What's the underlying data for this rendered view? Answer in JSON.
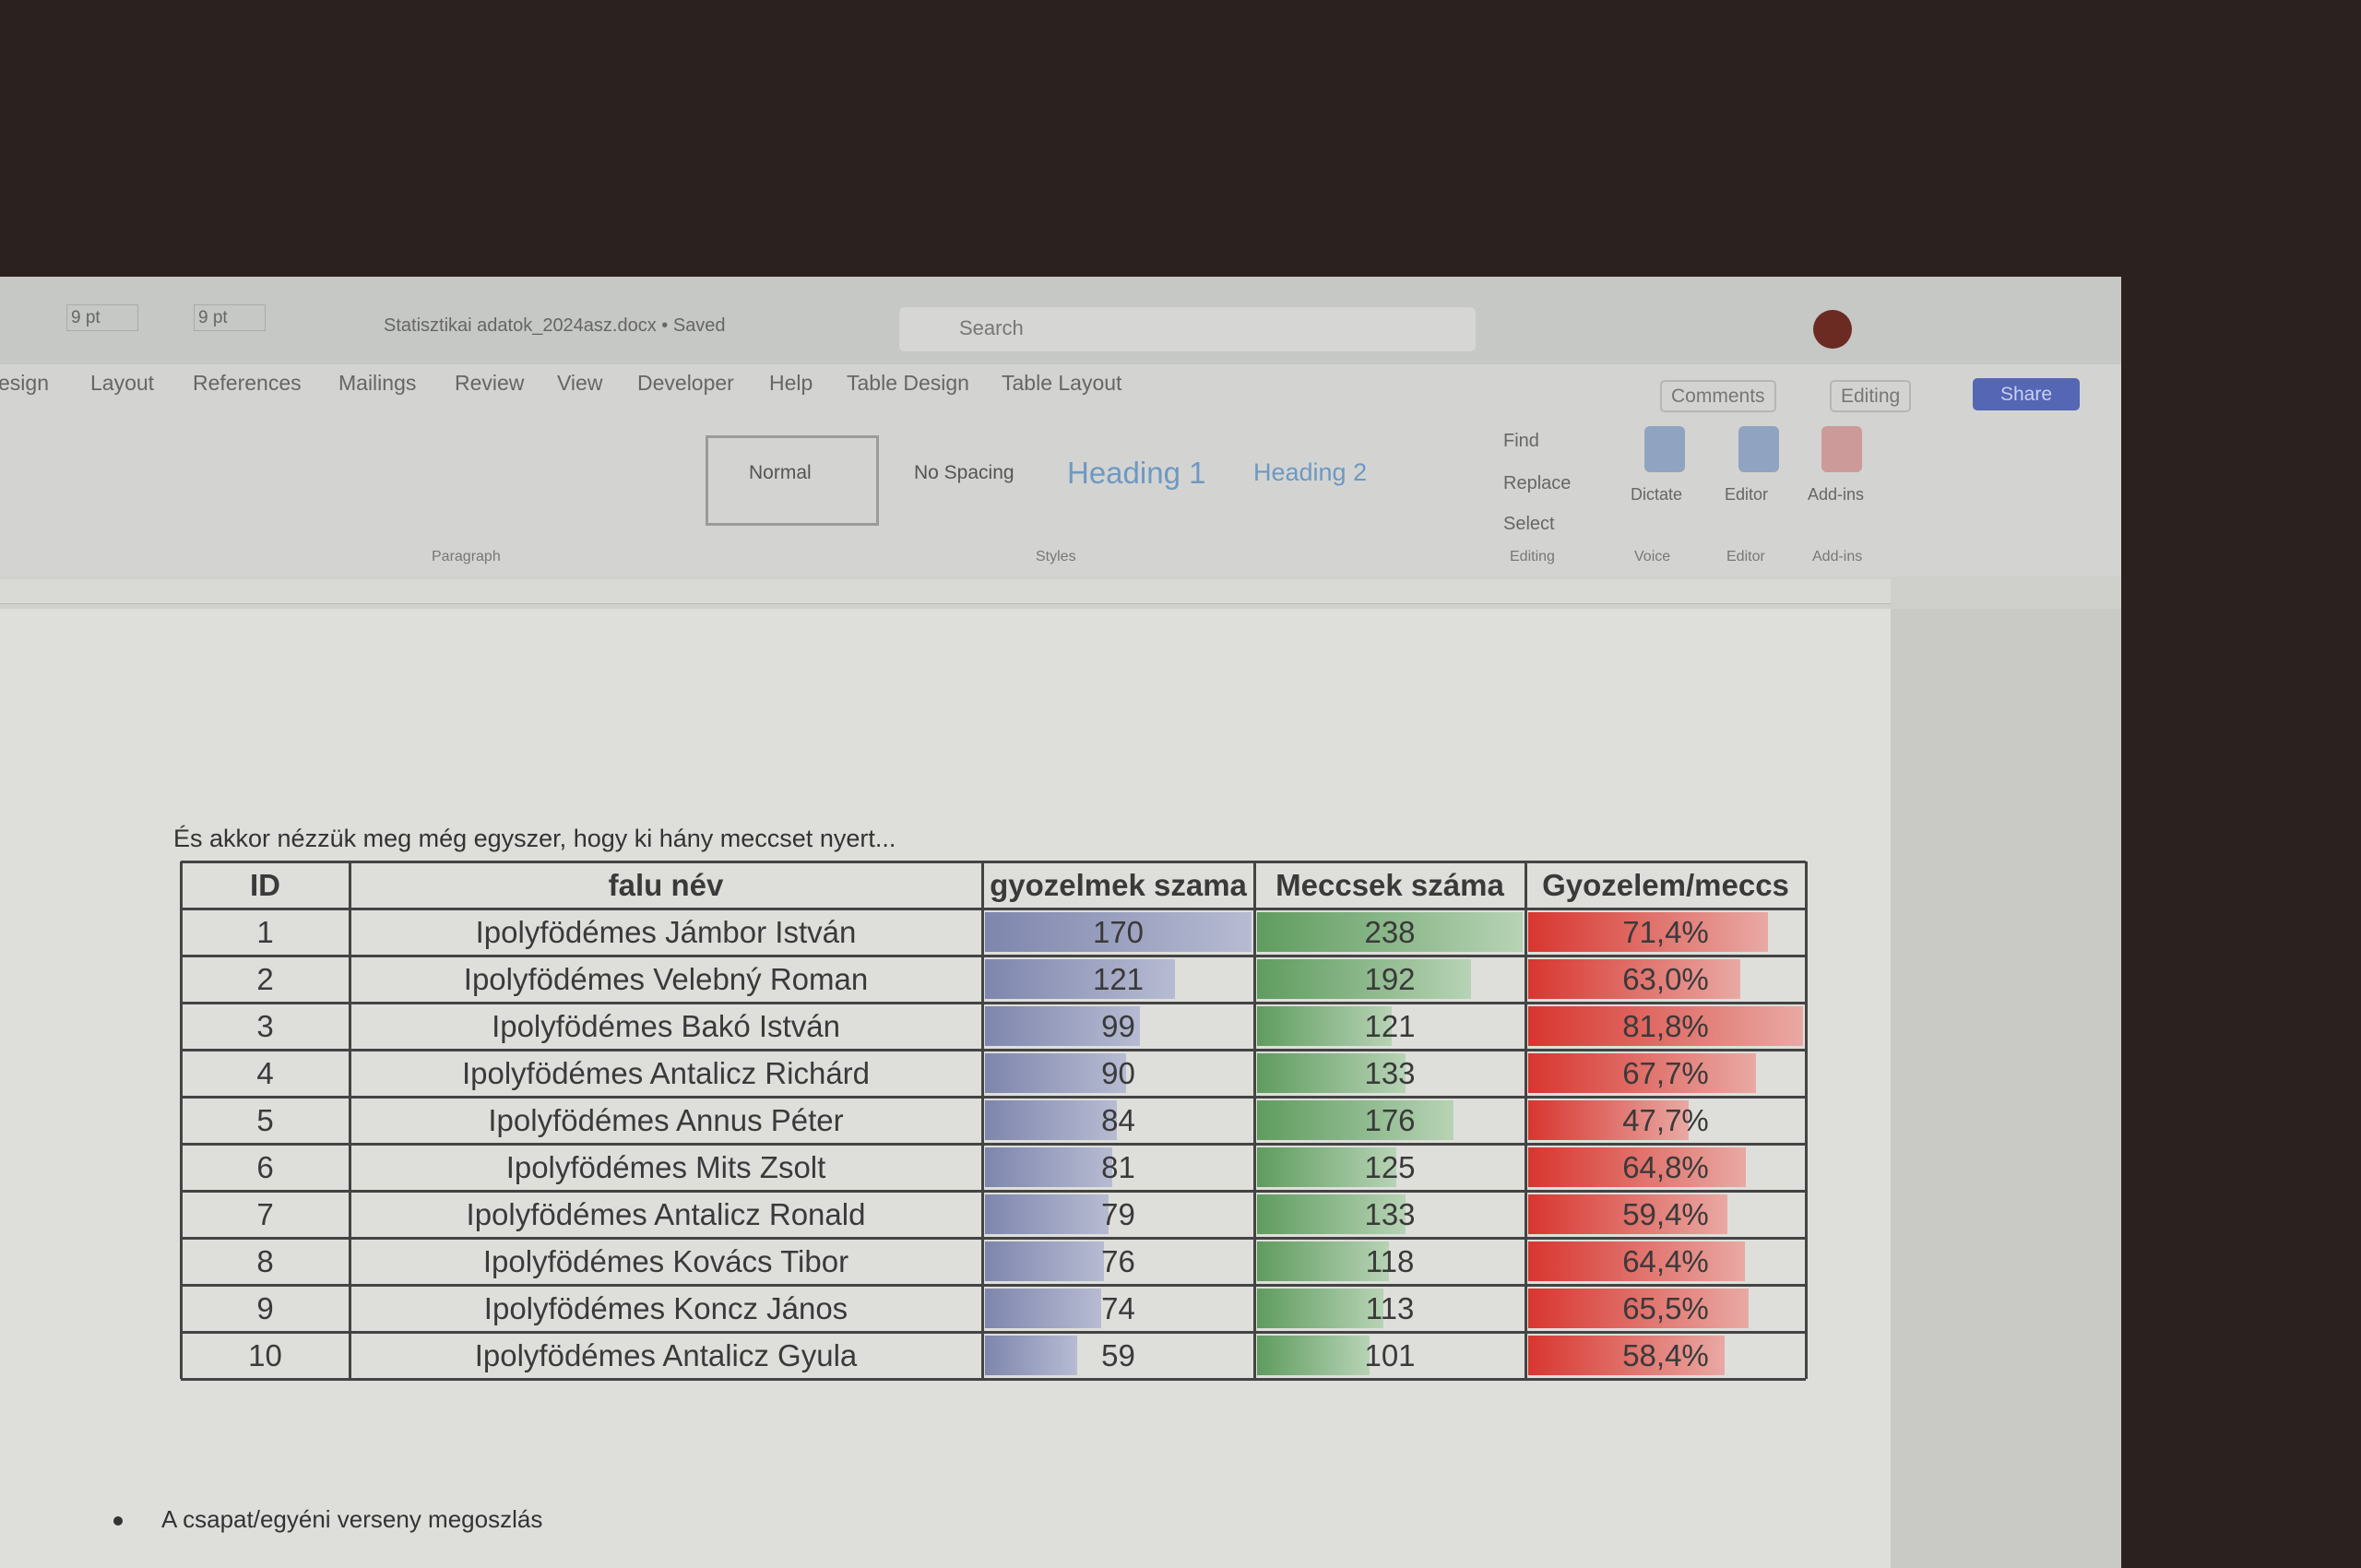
{
  "title_bar": {
    "font_size_1": "9 pt",
    "font_size_2": "9 pt",
    "document": "Statisztikai adatok_2024asz.docx • Saved",
    "search": "Search"
  },
  "tabs": [
    "esign",
    "Layout",
    "References",
    "Mailings",
    "Review",
    "View",
    "Developer",
    "Help",
    "Table Design",
    "Table Layout"
  ],
  "buttons": {
    "comments": "Comments",
    "editing": "Editing",
    "share": "Share"
  },
  "ribbon": {
    "styles": [
      "Normal",
      "No Spacing",
      "Heading 1",
      "Heading 2"
    ],
    "editing": [
      "Find",
      "Replace",
      "Select"
    ],
    "tools": [
      "Dictate",
      "Editor",
      "Add-ins"
    ],
    "groups": [
      "Paragraph",
      "Styles",
      "Editing",
      "Voice",
      "Editor",
      "Add-ins"
    ]
  },
  "document": {
    "caption": "És akkor nézzük meg még egyszer, hogy ki hány meccset nyert...",
    "table": {
      "header": [
        "ID",
        "falu név",
        "gyozelmek szama",
        "Meccsek száma",
        "Gyozelem/meccs"
      ],
      "rows": [
        [
          1,
          "Ipolyfödémes Jámbor István",
          170,
          238,
          {
            "value": 71.4,
            "label": "71,4%"
          }
        ],
        [
          2,
          "Ipolyfödémes Velebný Roman",
          121,
          192,
          {
            "value": 63.0,
            "label": "63,0%"
          }
        ],
        [
          3,
          "Ipolyfödémes Bakó István",
          99,
          121,
          {
            "value": 81.8,
            "label": "81,8%"
          }
        ],
        [
          4,
          "Ipolyfödémes Antalicz Richárd",
          90,
          133,
          {
            "value": 67.7,
            "label": "67,7%"
          }
        ],
        [
          5,
          "Ipolyfödémes Annus Péter",
          84,
          176,
          {
            "value": 47.7,
            "label": "47,7%"
          }
        ],
        [
          6,
          "Ipolyfödémes Mits Zsolt",
          81,
          125,
          {
            "value": 64.8,
            "label": "64,8%"
          }
        ],
        [
          7,
          "Ipolyfödémes Antalicz Ronald",
          79,
          133,
          {
            "value": 59.4,
            "label": "59,4%"
          }
        ],
        [
          8,
          "Ipolyfödémes Kovács Tibor",
          76,
          118,
          {
            "value": 64.4,
            "label": "64,4%"
          }
        ],
        [
          9,
          "Ipolyfödémes Koncz János",
          74,
          113,
          {
            "value": 65.5,
            "label": "65,5%"
          }
        ],
        [
          10,
          "Ipolyfödémes Antalicz Gyula",
          59,
          101,
          {
            "value": 58.4,
            "label": "58,4%"
          }
        ]
      ]
    },
    "bullet": "A csapat/egyéni verseny megoszlás"
  }
}
